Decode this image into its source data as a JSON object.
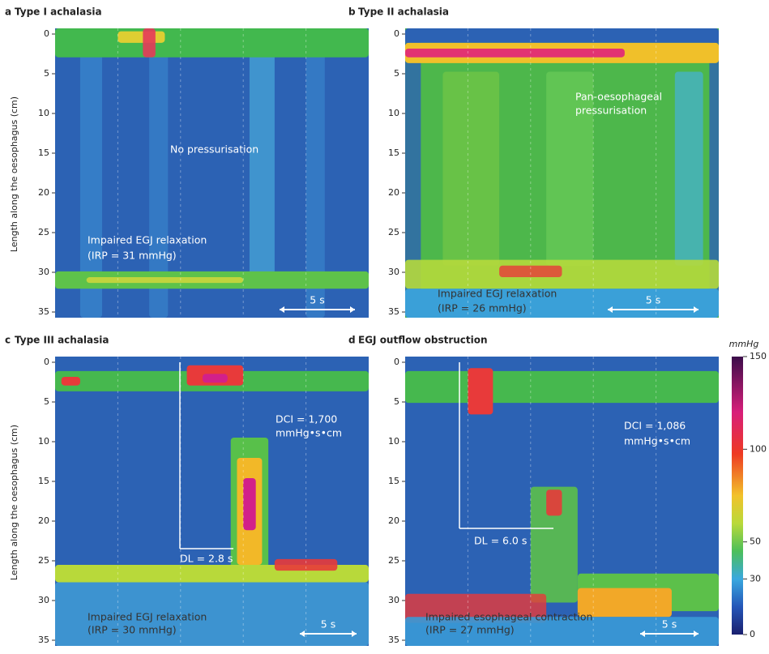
{
  "y_axis_label": "Length along the oesophagus (cm)",
  "panels": [
    {
      "letter": "a",
      "title": "Type I achalasia",
      "yticks": [
        0,
        5,
        10,
        15,
        20,
        25,
        30,
        35
      ],
      "annotations": [
        {
          "lines": [
            "No pressurisation"
          ]
        },
        {
          "lines": [
            "Impaired EGJ relaxation",
            "(IRP = 31 mmHg)"
          ]
        }
      ],
      "time_scale": "5 s"
    },
    {
      "letter": "b",
      "title": "Type II achalasia",
      "yticks": [
        0,
        5,
        10,
        15,
        20,
        25,
        30,
        35
      ],
      "annotations": [
        {
          "lines": [
            "Pan-oesophageal",
            "pressurisation"
          ]
        },
        {
          "lines": [
            "Impaired EGJ relaxation",
            "(IRP = 26 mmHg)"
          ]
        }
      ],
      "time_scale": "5 s"
    },
    {
      "letter": "c",
      "title": "Type III achalasia",
      "yticks": [
        0,
        5,
        10,
        15,
        20,
        25,
        30,
        35
      ],
      "annotations": [
        {
          "lines": [
            "DCI = 1,700",
            "mmHg•s•cm"
          ]
        },
        {
          "lines": [
            "DL = 2.8 s"
          ]
        },
        {
          "lines": [
            "Impaired EGJ relaxation",
            "(IRP = 30 mmHg)"
          ]
        }
      ],
      "time_scale": "5 s"
    },
    {
      "letter": "d",
      "title": "EGJ outflow obstruction",
      "yticks": [
        0,
        5,
        10,
        15,
        20,
        25,
        30,
        35
      ],
      "annotations": [
        {
          "lines": [
            "DCI = 1,086",
            "mmHg•s•cm"
          ]
        },
        {
          "lines": [
            "DL = 6.0 s"
          ]
        },
        {
          "lines": [
            "Impaired esophageal contraction",
            "(IRP = 27 mmHg)"
          ]
        }
      ],
      "time_scale": "5 s"
    }
  ],
  "colorbar": {
    "unit": "mmHg",
    "ticks": [
      150,
      100,
      50,
      30,
      0
    ]
  }
}
